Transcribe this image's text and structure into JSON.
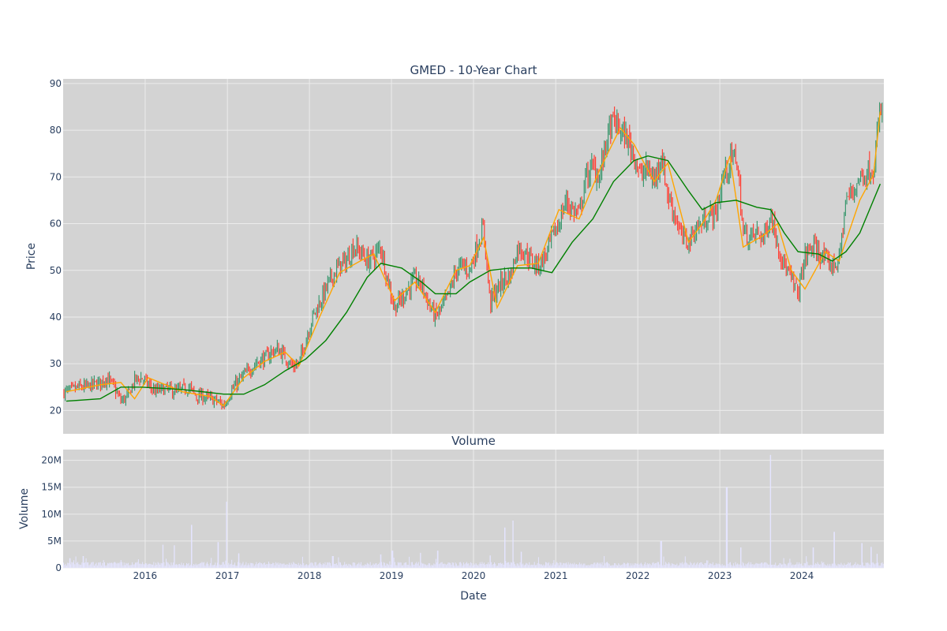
{
  "chart_data": [
    {
      "type": "candlestick",
      "title": "GMED - 10-Year Chart",
      "ylabel": "Price",
      "xlabel": "",
      "ylim": [
        15,
        91
      ],
      "yticks": [
        20,
        30,
        40,
        50,
        60,
        70,
        80,
        90
      ],
      "grid": true,
      "series": [
        {
          "kind": "candles (approx. monthly close)",
          "x": [
            "2015-01",
            "2015-02",
            "2015-03",
            "2015-04",
            "2015-05",
            "2015-06",
            "2015-07",
            "2015-08",
            "2015-09",
            "2015-10",
            "2015-11",
            "2015-12",
            "2016-01",
            "2016-02",
            "2016-03",
            "2016-04",
            "2016-05",
            "2016-06",
            "2016-07",
            "2016-08",
            "2016-09",
            "2016-10",
            "2016-11",
            "2016-12",
            "2017-01",
            "2017-02",
            "2017-03",
            "2017-04",
            "2017-05",
            "2017-06",
            "2017-07",
            "2017-08",
            "2017-09",
            "2017-10",
            "2017-11",
            "2017-12",
            "2018-01",
            "2018-02",
            "2018-03",
            "2018-04",
            "2018-05",
            "2018-06",
            "2018-07",
            "2018-08",
            "2018-09",
            "2018-10",
            "2018-11",
            "2018-12",
            "2019-01",
            "2019-02",
            "2019-03",
            "2019-04",
            "2019-05",
            "2019-06",
            "2019-07",
            "2019-08",
            "2019-09",
            "2019-10",
            "2019-11",
            "2019-12",
            "2020-01",
            "2020-02",
            "2020-03",
            "2020-04",
            "2020-05",
            "2020-06",
            "2020-07",
            "2020-08",
            "2020-09",
            "2020-10",
            "2020-11",
            "2020-12",
            "2021-01",
            "2021-02",
            "2021-03",
            "2021-04",
            "2021-05",
            "2021-06",
            "2021-07",
            "2021-08",
            "2021-09",
            "2021-10",
            "2021-11",
            "2021-12",
            "2022-01",
            "2022-02",
            "2022-03",
            "2022-04",
            "2022-05",
            "2022-06",
            "2022-07",
            "2022-08",
            "2022-09",
            "2022-10",
            "2022-11",
            "2022-12",
            "2023-01",
            "2023-02",
            "2023-03",
            "2023-04",
            "2023-05",
            "2023-06",
            "2023-07",
            "2023-08",
            "2023-09",
            "2023-10",
            "2023-11",
            "2023-12",
            "2024-01",
            "2024-02",
            "2024-03",
            "2024-04",
            "2024-05",
            "2024-06",
            "2024-07",
            "2024-08",
            "2024-09",
            "2024-10",
            "2024-11",
            "2024-12"
          ],
          "close": [
            24,
            24.5,
            25,
            25,
            25.5,
            26,
            27,
            25,
            22,
            23,
            26.5,
            27,
            25.5,
            24,
            24.5,
            24.5,
            24,
            24.5,
            25,
            23,
            23,
            22.5,
            22,
            21,
            24,
            26,
            27.5,
            29,
            30.5,
            31,
            32.5,
            33,
            31.5,
            29.5,
            30,
            35,
            40,
            43,
            46,
            49,
            51,
            52,
            55,
            54,
            52,
            53,
            55,
            48,
            42,
            44,
            46,
            48,
            47,
            43,
            40,
            42,
            45,
            50,
            51,
            50,
            55,
            59,
            43,
            46,
            48,
            49,
            55,
            54,
            52,
            51,
            53,
            57,
            60,
            65,
            63,
            62,
            70,
            72,
            70,
            78,
            82,
            80,
            78,
            75,
            70,
            72,
            69,
            75,
            66,
            62,
            57,
            56,
            59,
            60,
            62,
            62,
            70,
            73,
            75,
            58,
            57,
            58,
            57,
            62,
            56,
            51,
            48,
            45,
            53,
            55,
            54,
            52,
            51,
            52,
            65,
            67,
            70,
            71,
            72,
            84
          ],
          "colors": {
            "increasing": "#3d9970",
            "decreasing": "#ff4136"
          }
        },
        {
          "kind": "short moving average",
          "color": "#ffa500",
          "x": [
            "2015-01",
            "2015-06",
            "2015-09",
            "2015-11",
            "2016-01",
            "2016-06",
            "2016-10",
            "2016-12",
            "2017-03",
            "2017-06",
            "2017-09",
            "2017-11",
            "2018-02",
            "2018-05",
            "2018-08",
            "2018-10",
            "2019-01",
            "2019-04",
            "2019-07",
            "2019-10",
            "2019-12",
            "2020-02",
            "2020-04",
            "2020-07",
            "2020-10",
            "2021-01",
            "2021-04",
            "2021-07",
            "2021-10",
            "2021-12",
            "2022-03",
            "2022-05",
            "2022-08",
            "2022-10",
            "2022-12",
            "2023-02",
            "2023-04",
            "2023-07",
            "2023-09",
            "2023-11",
            "2024-01",
            "2024-04",
            "2024-06",
            "2024-09",
            "2024-11",
            "2024-12"
          ],
          "values": [
            24,
            25.5,
            26,
            22.5,
            27,
            24,
            23,
            21,
            27,
            30.5,
            32.5,
            29.5,
            40,
            49.5,
            52,
            53.5,
            43.5,
            47.5,
            41,
            50,
            51,
            57,
            42,
            51,
            51.5,
            63,
            61,
            71.5,
            80.5,
            77,
            69,
            73,
            56,
            60,
            65,
            74.5,
            55,
            57.5,
            60,
            50,
            46,
            54,
            52,
            65,
            70.5,
            84
          ]
        },
        {
          "kind": "long moving average",
          "color": "#008000",
          "x": [
            "2015-01",
            "2015-06",
            "2015-09",
            "2015-12",
            "2016-06",
            "2016-12",
            "2017-03",
            "2017-06",
            "2017-09",
            "2017-12",
            "2018-03",
            "2018-06",
            "2018-09",
            "2018-11",
            "2019-02",
            "2019-05",
            "2019-07",
            "2019-10",
            "2019-12",
            "2020-03",
            "2020-06",
            "2020-09",
            "2020-12",
            "2021-03",
            "2021-06",
            "2021-09",
            "2021-12",
            "2022-02",
            "2022-05",
            "2022-08",
            "2022-10",
            "2022-12",
            "2023-03",
            "2023-06",
            "2023-08",
            "2023-10",
            "2023-12",
            "2024-03",
            "2024-05",
            "2024-07",
            "2024-09",
            "2024-12"
          ],
          "values": [
            22,
            22.5,
            25,
            25,
            24.5,
            23.5,
            23.5,
            25.5,
            28.5,
            31,
            35,
            41,
            48.5,
            51.5,
            50.5,
            47.5,
            45,
            45,
            47.5,
            50,
            50.5,
            50.5,
            49.5,
            56,
            61,
            69,
            73.5,
            74.5,
            73.5,
            67,
            63,
            64.5,
            65,
            63.5,
            63,
            58,
            54,
            53.5,
            52,
            54,
            58,
            68.5
          ]
        }
      ]
    },
    {
      "type": "bar",
      "title": "Volume",
      "ylabel": "Volume",
      "xlabel": "Date",
      "ylim": [
        0,
        22000000
      ],
      "yticks": [
        0,
        5000000,
        10000000,
        15000000,
        20000000
      ],
      "ytick_labels": [
        "0",
        "5M",
        "10M",
        "15M",
        "20M"
      ],
      "xticks": [
        "2016-01-01",
        "2017-01-01",
        "2018-01-01",
        "2019-01-01",
        "2020-01-01",
        "2021-01-01",
        "2022-01-01",
        "2023-01-01",
        "2024-01-01"
      ],
      "xtick_labels": [
        "2016",
        "2017",
        "2018",
        "2019",
        "2020",
        "2021",
        "2022",
        "2023",
        "2024"
      ],
      "color": "#e5e5ff",
      "baseline": 800000,
      "spikes": {
        "x": [
          "2015-02-01",
          "2015-04-01",
          "2016-03-20",
          "2016-05-10",
          "2016-07-25",
          "2016-11-20",
          "2016-12-28",
          "2017-02-20",
          "2018-04-15",
          "2018-11-15",
          "2019-01-05",
          "2019-05-10",
          "2019-07-25",
          "2020-03-15",
          "2020-05-20",
          "2020-06-25",
          "2020-08-01",
          "2022-04-15",
          "2023-02-01",
          "2023-04-05",
          "2023-08-15",
          "2024-02-20",
          "2024-05-25",
          "2024-09-25",
          "2024-11-05",
          "2024-12-01"
        ],
        "values": [
          1800000,
          2200000,
          4300000,
          4200000,
          8000000,
          4800000,
          12300000,
          2700000,
          2200000,
          2500000,
          3200000,
          2800000,
          3200000,
          2300000,
          7500000,
          8800000,
          3000000,
          5000000,
          15000000,
          3800000,
          21000000,
          3800000,
          6700000,
          4600000,
          3900000,
          2600000
        ]
      }
    }
  ]
}
